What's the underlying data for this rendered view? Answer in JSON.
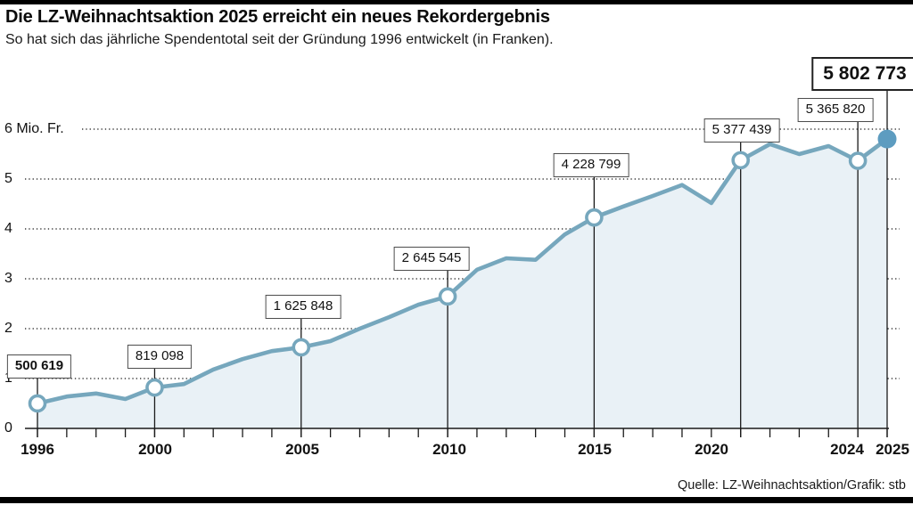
{
  "header": {
    "title": "Die LZ-Weihnachtsaktion 2025 erreicht ein neues Rekordergebnis",
    "subtitle": "So hat sich das jährliche Spendentotal seit der Gründung 1996 entwickelt (in Franken)."
  },
  "footer": {
    "source": "Quelle: LZ-Weihnachtsaktion/Grafik: stb"
  },
  "chart_data": {
    "type": "area",
    "title": "Die LZ-Weihnachtsaktion 2025 erreicht ein neues Rekordergebnis",
    "subtitle": "So hat sich das jährliche Spendentotal seit der Gründung 1996 entwickelt (in Franken).",
    "unit": "Franken",
    "x": [
      1996,
      1997,
      1998,
      1999,
      2000,
      2001,
      2002,
      2003,
      2004,
      2005,
      2006,
      2007,
      2008,
      2009,
      2010,
      2011,
      2012,
      2013,
      2014,
      2015,
      2016,
      2017,
      2018,
      2019,
      2020,
      2021,
      2022,
      2023,
      2024,
      2025
    ],
    "values": [
      500619,
      640000,
      700000,
      590000,
      819098,
      890000,
      1180000,
      1390000,
      1550000,
      1625848,
      1750000,
      2000000,
      2230000,
      2480000,
      2645545,
      3180000,
      3410000,
      3380000,
      3890000,
      4228799,
      4450000,
      4660000,
      4880000,
      4520000,
      5377439,
      5700000,
      5500000,
      5660000,
      5365820,
      5802773
    ],
    "ylim": [
      0,
      6000000
    ],
    "yticks": {
      "y6": "6 Mio. Fr.",
      "y5": "5",
      "y4": "4",
      "y3": "3",
      "y2": "2",
      "y1": "1",
      "y0": "0"
    },
    "xticks": {
      "t1996": "1996",
      "t2000": "2000",
      "t2005": "2005",
      "t2010": "2010",
      "t2015": "2015",
      "t2020": "2020",
      "t2024": "2024",
      "t2025": "2025"
    },
    "grid": "dotted-horizontal",
    "legend": "none",
    "callouts": [
      {
        "year": 1996,
        "value": 500619,
        "label": "500 619",
        "bold": true,
        "big": false
      },
      {
        "year": 2000,
        "value": 819098,
        "label": "819 098",
        "bold": false,
        "big": false
      },
      {
        "year": 2005,
        "value": 1625848,
        "label": "1 625 848",
        "bold": false,
        "big": false
      },
      {
        "year": 2010,
        "value": 2645545,
        "label": "2 645 545",
        "bold": false,
        "big": false
      },
      {
        "year": 2015,
        "value": 4228799,
        "label": "4 228 799",
        "bold": false,
        "big": false
      },
      {
        "year": 2020,
        "value": 5377439,
        "label": "5 377 439",
        "bold": false,
        "big": false
      },
      {
        "year": 2024,
        "value": 5365820,
        "label": "5 365 820",
        "bold": false,
        "big": false
      },
      {
        "year": 2025,
        "value": 5802773,
        "label": "5 802 773",
        "bold": true,
        "big": true
      }
    ],
    "colors": {
      "line": "#76a7bd",
      "area_fill": "#e9f1f6",
      "final_dot": "#5d9cc0",
      "axis": "#1a1a1a",
      "grid_dots": "#3c3c3c",
      "marker_fill": "#ffffff"
    }
  }
}
